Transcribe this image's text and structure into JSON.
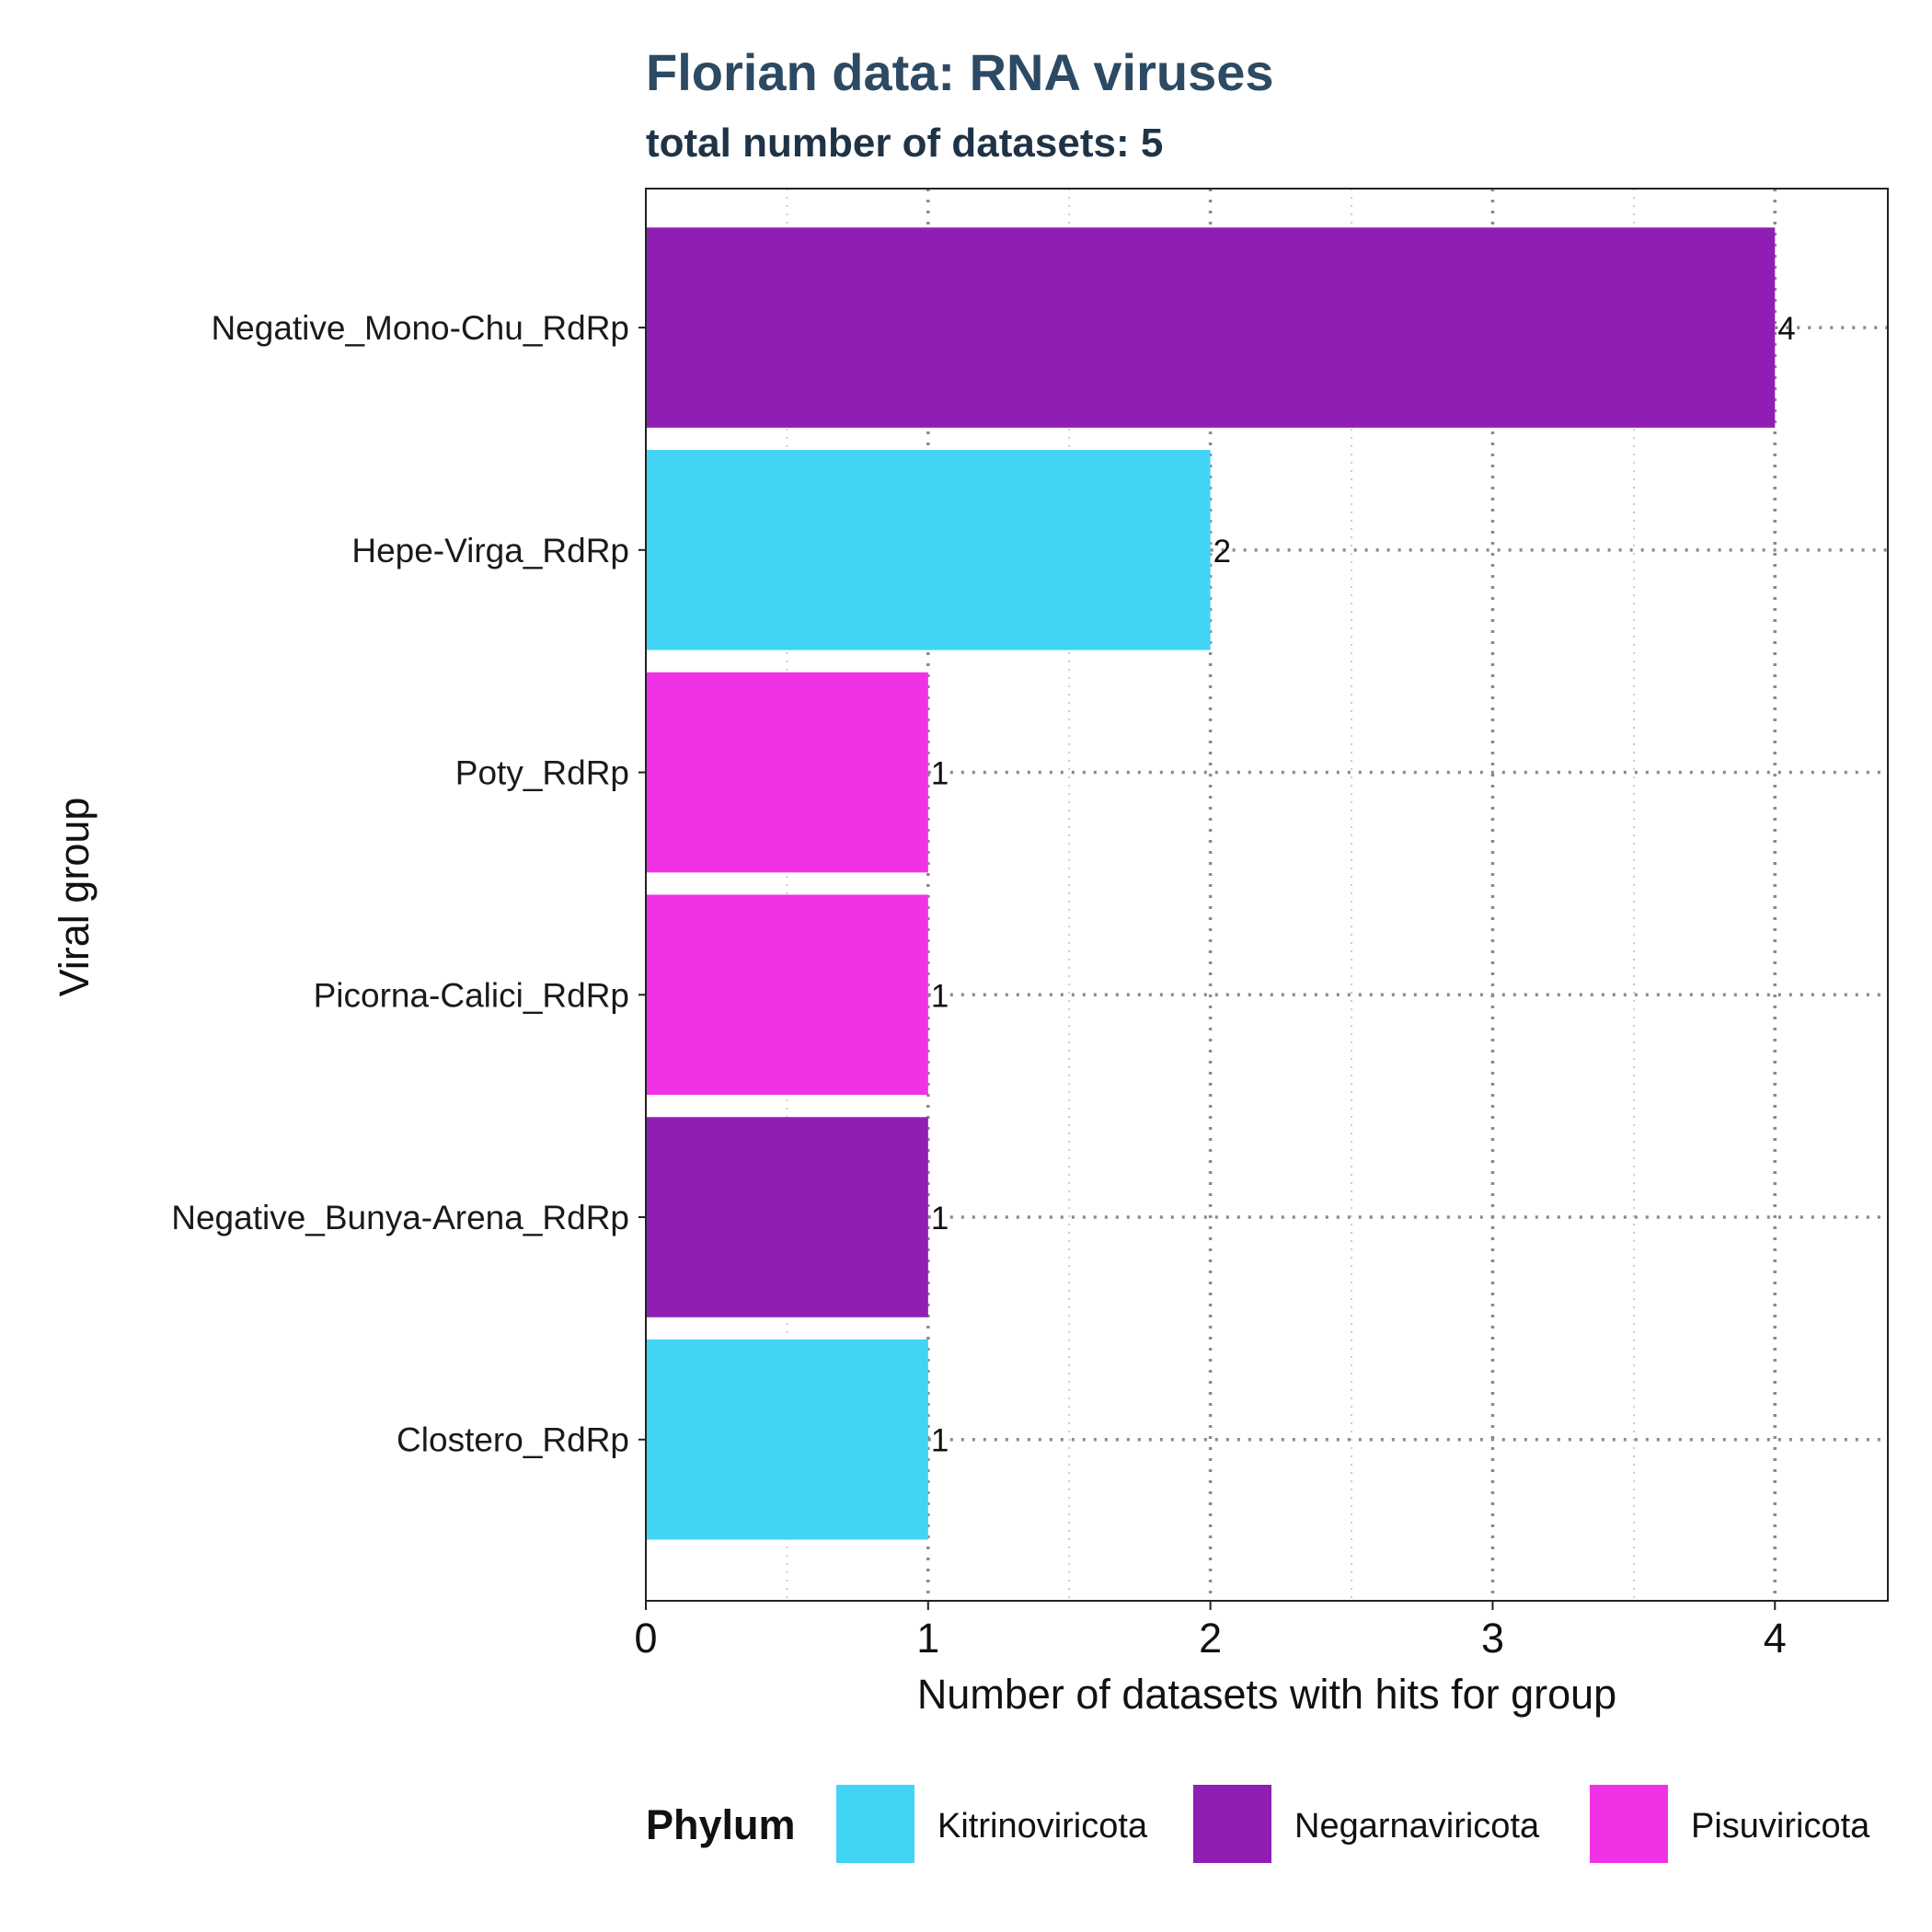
{
  "chart_data": {
    "type": "bar",
    "orientation": "horizontal",
    "title": "Florian data: RNA viruses",
    "subtitle": "total number of datasets: 5",
    "xlabel": "Number of datasets with hits for group",
    "ylabel": "Viral group",
    "xlim": [
      0,
      4.4
    ],
    "x_ticks": [
      "0",
      "1",
      "2",
      "3",
      "4"
    ],
    "grid": "dotted",
    "legend_position": "bottom",
    "legend_title": "Phylum",
    "legend": [
      {
        "name": "Kitrinoviricota",
        "color": "#42d4f4"
      },
      {
        "name": "Negarnaviricota",
        "color": "#911eb4"
      },
      {
        "name": "Pisuviricota",
        "color": "#f032e6"
      }
    ],
    "categories": [
      "Negative_Mono-Chu_RdRp",
      "Hepe-Virga_RdRp",
      "Poty_RdRp",
      "Picorna-Calici_RdRp",
      "Negative_Bunya-Arena_RdRp",
      "Clostero_RdRp"
    ],
    "values": [
      4,
      2,
      1,
      1,
      1,
      1
    ],
    "value_labels": [
      "4",
      "2",
      "1",
      "1",
      "1",
      "1"
    ],
    "phylum": [
      "Negarnaviricota",
      "Kitrinoviricota",
      "Pisuviricota",
      "Pisuviricota",
      "Negarnaviricota",
      "Kitrinoviricota"
    ]
  }
}
